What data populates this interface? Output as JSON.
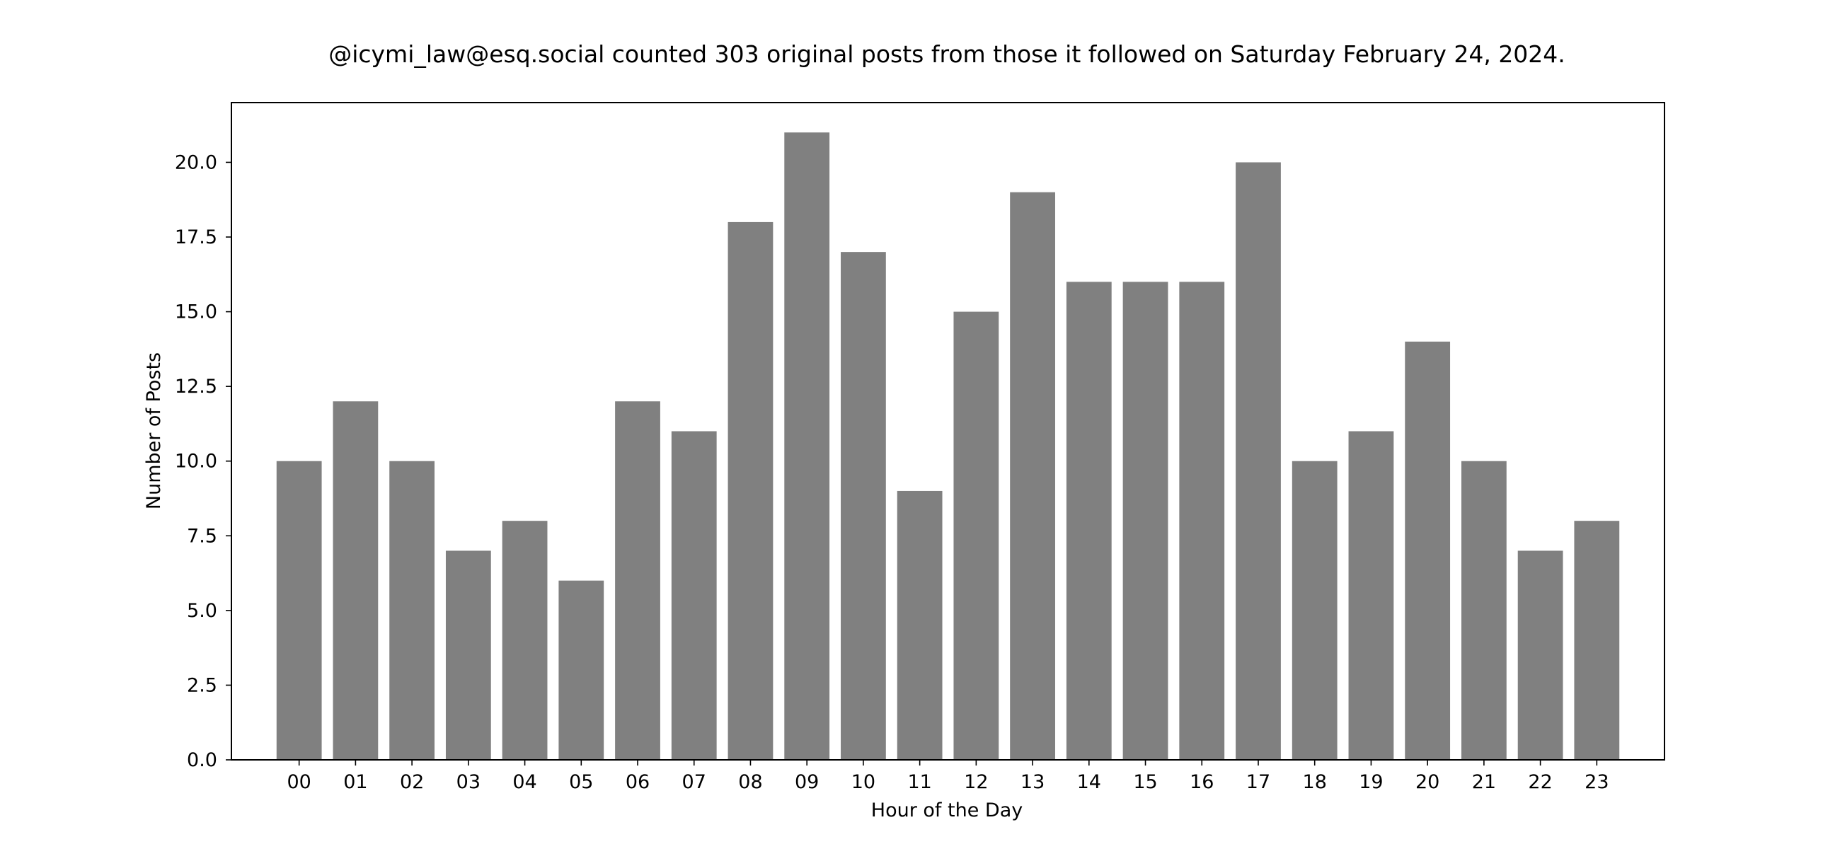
{
  "chart_data": {
    "type": "bar",
    "title": "@icymi_law@esq.social counted 303 original posts from those it followed on Saturday February 24, 2024.",
    "xlabel": "Hour of the Day",
    "ylabel": "Number of Posts",
    "categories": [
      "00",
      "01",
      "02",
      "03",
      "04",
      "05",
      "06",
      "07",
      "08",
      "09",
      "10",
      "11",
      "12",
      "13",
      "14",
      "15",
      "16",
      "17",
      "18",
      "19",
      "20",
      "21",
      "22",
      "23"
    ],
    "values": [
      10,
      12,
      10,
      7,
      8,
      6,
      12,
      11,
      18,
      21,
      17,
      9,
      15,
      19,
      16,
      16,
      16,
      20,
      10,
      11,
      14,
      10,
      7,
      8
    ],
    "ylim": [
      0,
      22
    ],
    "yticks": [
      "0.0",
      "2.5",
      "5.0",
      "7.5",
      "10.0",
      "12.5",
      "15.0",
      "17.5",
      "20.0"
    ],
    "grid": false,
    "bar_color": "#808080"
  }
}
